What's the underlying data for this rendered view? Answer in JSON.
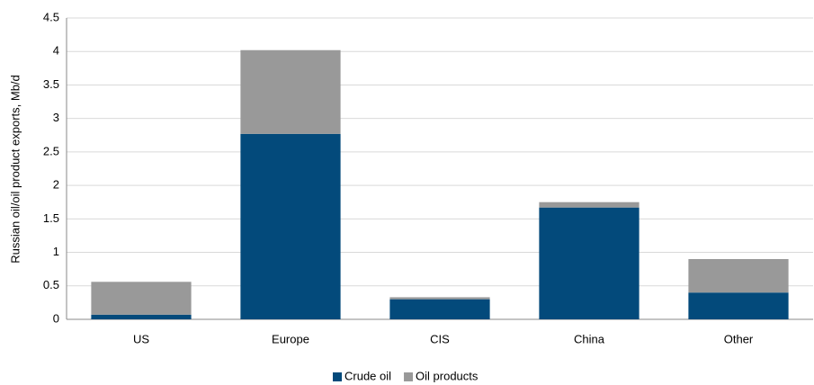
{
  "chart_data": {
    "type": "stacked_bar",
    "y_label": "Russian oil/oil product exports, Mb/d",
    "categories": [
      "US",
      "Europe",
      "CIS",
      "China",
      "Other"
    ],
    "series": [
      {
        "name": "Crude oil",
        "color": "#034a7b",
        "values": [
          0.07,
          2.77,
          0.3,
          1.67,
          0.4
        ]
      },
      {
        "name": "Oil products",
        "color": "#999999",
        "values": [
          0.49,
          1.25,
          0.03,
          0.08,
          0.5
        ]
      }
    ],
    "ylim": [
      0,
      4.5
    ],
    "yticks": [
      0,
      0.5,
      1,
      1.5,
      2,
      2.5,
      3,
      3.5,
      4,
      4.5
    ],
    "grid": true,
    "legend": "bottom"
  }
}
